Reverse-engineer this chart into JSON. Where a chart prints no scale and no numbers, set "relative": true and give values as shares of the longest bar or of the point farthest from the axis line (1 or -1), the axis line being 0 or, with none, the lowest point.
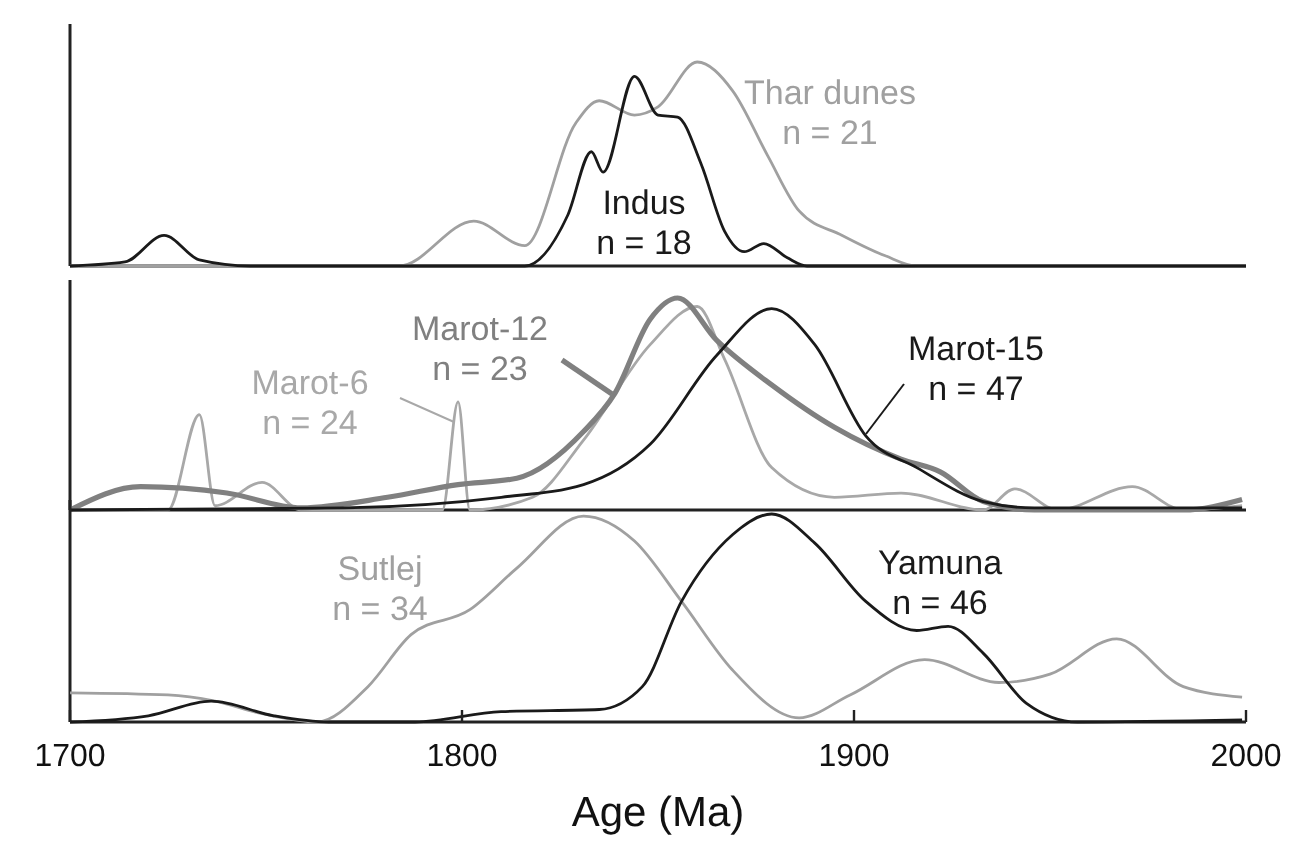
{
  "chart_data": [
    {
      "type": "line",
      "relative": true,
      "xlim": [
        1700,
        2000
      ],
      "series": [
        {
          "name": "Thar dunes\nn = 21",
          "color": "#a0a0a0",
          "x": [
            1700,
            1784,
            1803,
            1816,
            1829,
            1835,
            1844,
            1850,
            1860,
            1869,
            1878,
            1886,
            1897,
            1908,
            1916,
            2000
          ],
          "values": [
            0,
            0,
            0.22,
            0.1,
            0.7,
            0.81,
            0.74,
            0.78,
            1.0,
            0.86,
            0.54,
            0.27,
            0.15,
            0.05,
            0,
            0
          ]
        },
        {
          "name": "Indus\nn = 18",
          "color": "#1a1a1a",
          "x": [
            1700,
            1714,
            1724,
            1733,
            1746,
            1816,
            1827,
            1833,
            1836,
            1844,
            1850,
            1855,
            1861,
            1867,
            1872,
            1877,
            1883,
            1888,
            2000
          ],
          "values": [
            0,
            0.02,
            0.15,
            0.03,
            0,
            0,
            0.25,
            0.56,
            0.46,
            0.93,
            0.74,
            0.73,
            0.5,
            0.17,
            0.07,
            0.11,
            0.04,
            0,
            0
          ]
        }
      ]
    },
    {
      "type": "line",
      "relative": true,
      "xlim": [
        1700,
        2000
      ],
      "series": [
        {
          "name": "Marot-6\nn = 24",
          "color": "#a8a8a8",
          "x": [
            1700,
            1725,
            1733,
            1737,
            1749,
            1759,
            1795,
            1799,
            1802,
            1818,
            1831,
            1848,
            1860,
            1867,
            1879,
            1895,
            1912,
            1933,
            1941,
            1952,
            1971,
            1984,
            1999
          ],
          "values": [
            0,
            0,
            0.45,
            0.02,
            0.13,
            0,
            0,
            0.51,
            0,
            0.06,
            0.33,
            0.78,
            0.96,
            0.71,
            0.2,
            0.06,
            0.08,
            0,
            0.1,
            0,
            0.11,
            0,
            0.02
          ]
        },
        {
          "name": "Marot-12\nn = 23",
          "color": "#808080",
          "x": [
            1700,
            1718,
            1740,
            1759,
            1781,
            1799,
            1814,
            1831,
            1839,
            1848,
            1855,
            1865,
            1879,
            1895,
            1912,
            1922,
            1933,
            1946,
            1984,
            1999
          ],
          "values": [
            0,
            0.11,
            0.08,
            0.01,
            0.06,
            0.12,
            0.15,
            0.37,
            0.55,
            0.9,
            1.0,
            0.8,
            0.59,
            0.39,
            0.24,
            0.18,
            0.04,
            0,
            0,
            0.05
          ]
        },
        {
          "name": "Marot-15\nn = 47",
          "color": "#1a1a1a",
          "x": [
            1700,
            1770,
            1810,
            1831,
            1848,
            1865,
            1879,
            1890,
            1903,
            1916,
            1933,
            1946,
            1999
          ],
          "values": [
            0,
            0.01,
            0.06,
            0.12,
            0.31,
            0.73,
            0.95,
            0.78,
            0.35,
            0.2,
            0.04,
            0.01,
            0.01
          ]
        }
      ]
    },
    {
      "type": "line",
      "relative": true,
      "xlim": [
        1700,
        2000
      ],
      "xticks": [
        1700,
        1800,
        1900,
        2000
      ],
      "xlabel": "Age (Ma)",
      "series": [
        {
          "name": "Sutlej\nn = 34",
          "color": "#a0a0a0",
          "x": [
            1700,
            1725,
            1737,
            1749,
            1763,
            1776,
            1787,
            1802,
            1814,
            1831,
            1844,
            1856,
            1869,
            1886,
            1899,
            1918,
            1937,
            1950,
            1967,
            1984,
            1999
          ],
          "values": [
            0.14,
            0.13,
            0.1,
            0.04,
            0,
            0.17,
            0.42,
            0.54,
            0.74,
            0.99,
            0.87,
            0.58,
            0.25,
            0.02,
            0.13,
            0.3,
            0.19,
            0.23,
            0.4,
            0.17,
            0.12
          ]
        },
        {
          "name": "Yamuna\nn = 46",
          "color": "#1a1a1a",
          "x": [
            1700,
            1720,
            1736,
            1752,
            1766,
            1788,
            1810,
            1835,
            1846,
            1856,
            1869,
            1879,
            1890,
            1903,
            1916,
            1924,
            1933,
            1944,
            1957,
            1999
          ],
          "values": [
            0,
            0.03,
            0.1,
            0.03,
            0,
            0,
            0.05,
            0.06,
            0.17,
            0.58,
            0.9,
            1.0,
            0.86,
            0.58,
            0.44,
            0.46,
            0.33,
            0.09,
            0,
            0.01
          ]
        }
      ]
    }
  ]
}
